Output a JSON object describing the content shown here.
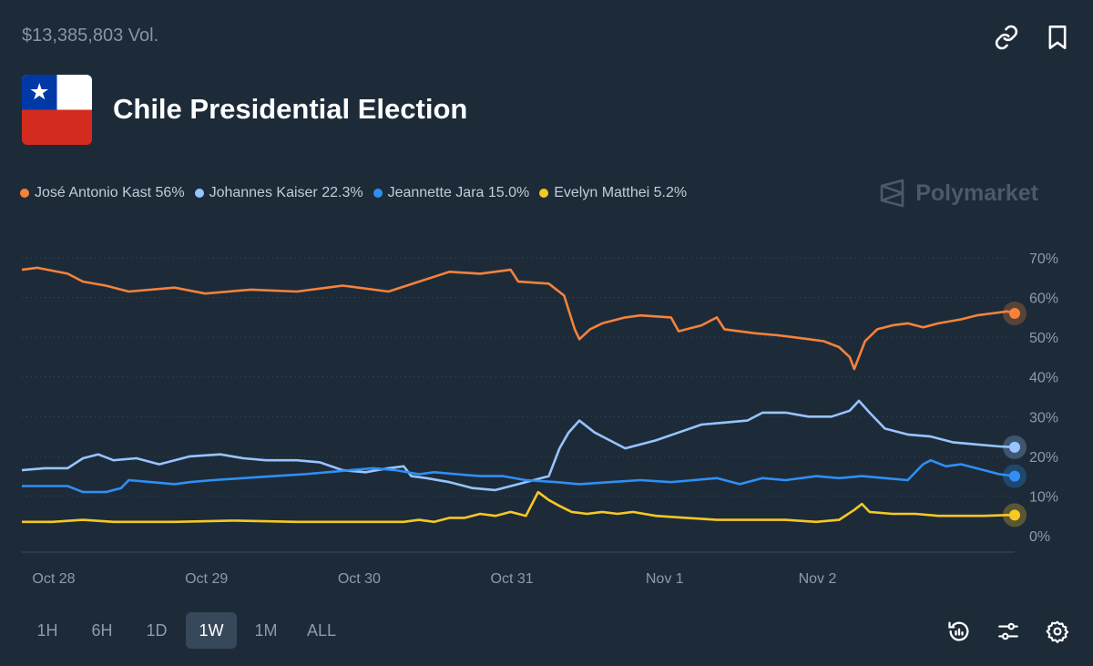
{
  "header": {
    "volume": "$13,385,803 Vol.",
    "title": "Chile Presidential Election",
    "brand": "Polymarket"
  },
  "icons": {
    "link": "link-icon",
    "bookmark": "bookmark-icon",
    "history": "history-icon",
    "filters": "sliders-icon",
    "settings": "gear-icon"
  },
  "legend": [
    {
      "label": "José Antonio Kast 56%",
      "color": "#f6823b"
    },
    {
      "label": "Johannes Kaiser 22.3%",
      "color": "#98c4ff"
    },
    {
      "label": "Jeannette Jara 15.0%",
      "color": "#2f8ff5"
    },
    {
      "label": "Evelyn Matthei 5.2%",
      "color": "#f7c823"
    }
  ],
  "timeframes": [
    {
      "label": "1H",
      "active": false
    },
    {
      "label": "6H",
      "active": false
    },
    {
      "label": "1D",
      "active": false
    },
    {
      "label": "1W",
      "active": true
    },
    {
      "label": "1M",
      "active": false
    },
    {
      "label": "ALL",
      "active": false
    }
  ],
  "chart_data": {
    "type": "line",
    "x_ticks": [
      "Oct 28",
      "Oct 29",
      "Oct 30",
      "Oct 31",
      "Nov 1",
      "Nov 2"
    ],
    "y_ticks": [
      "70%",
      "60%",
      "50%",
      "40%",
      "30%",
      "20%",
      "10%",
      "0%"
    ],
    "ylim": [
      0,
      70
    ],
    "xlim": [
      0,
      6.5
    ],
    "grid": "horizontal-dotted",
    "legend_position": "top-left",
    "series": [
      {
        "name": "José Antonio Kast",
        "color": "#f6823b",
        "last_value": 56,
        "points": [
          [
            0,
            67
          ],
          [
            0.1,
            67.5
          ],
          [
            0.3,
            66
          ],
          [
            0.4,
            64
          ],
          [
            0.55,
            63
          ],
          [
            0.7,
            61.5
          ],
          [
            1.0,
            62.5
          ],
          [
            1.2,
            61
          ],
          [
            1.5,
            62
          ],
          [
            1.8,
            61.5
          ],
          [
            2.0,
            62.5
          ],
          [
            2.1,
            63
          ],
          [
            2.4,
            61.5
          ],
          [
            2.6,
            64
          ],
          [
            2.8,
            66.5
          ],
          [
            3.0,
            66
          ],
          [
            3.2,
            67
          ],
          [
            3.25,
            64
          ],
          [
            3.45,
            63.5
          ],
          [
            3.55,
            60.5
          ],
          [
            3.62,
            52
          ],
          [
            3.65,
            49.5
          ],
          [
            3.72,
            52
          ],
          [
            3.8,
            53.5
          ],
          [
            3.95,
            55
          ],
          [
            4.05,
            55.5
          ],
          [
            4.25,
            55
          ],
          [
            4.3,
            51.5
          ],
          [
            4.45,
            53
          ],
          [
            4.55,
            55
          ],
          [
            4.6,
            52
          ],
          [
            4.8,
            51
          ],
          [
            4.95,
            50.5
          ],
          [
            5.05,
            50
          ],
          [
            5.25,
            49
          ],
          [
            5.35,
            47.5
          ],
          [
            5.42,
            45
          ],
          [
            5.45,
            42
          ],
          [
            5.52,
            49
          ],
          [
            5.6,
            52
          ],
          [
            5.7,
            53
          ],
          [
            5.8,
            53.5
          ],
          [
            5.9,
            52.5
          ],
          [
            6.0,
            53.5
          ],
          [
            6.15,
            54.5
          ],
          [
            6.25,
            55.5
          ],
          [
            6.35,
            56
          ],
          [
            6.45,
            56.5
          ],
          [
            6.5,
            56
          ]
        ]
      },
      {
        "name": "Johannes Kaiser",
        "color": "#98c4ff",
        "last_value": 22.3,
        "points": [
          [
            0,
            16.5
          ],
          [
            0.15,
            17
          ],
          [
            0.3,
            17
          ],
          [
            0.4,
            19.5
          ],
          [
            0.5,
            20.5
          ],
          [
            0.6,
            19
          ],
          [
            0.75,
            19.5
          ],
          [
            0.9,
            18
          ],
          [
            1.0,
            19
          ],
          [
            1.1,
            20
          ],
          [
            1.3,
            20.5
          ],
          [
            1.45,
            19.5
          ],
          [
            1.6,
            19
          ],
          [
            1.8,
            19
          ],
          [
            1.95,
            18.5
          ],
          [
            2.1,
            16.5
          ],
          [
            2.25,
            16
          ],
          [
            2.4,
            17
          ],
          [
            2.5,
            17.5
          ],
          [
            2.55,
            15
          ],
          [
            2.65,
            14.5
          ],
          [
            2.8,
            13.5
          ],
          [
            2.95,
            12
          ],
          [
            3.1,
            11.5
          ],
          [
            3.25,
            13
          ],
          [
            3.45,
            15
          ],
          [
            3.52,
            22
          ],
          [
            3.58,
            26
          ],
          [
            3.65,
            29
          ],
          [
            3.75,
            26
          ],
          [
            3.85,
            24
          ],
          [
            3.95,
            22
          ],
          [
            4.05,
            23
          ],
          [
            4.15,
            24
          ],
          [
            4.3,
            26
          ],
          [
            4.45,
            28
          ],
          [
            4.6,
            28.5
          ],
          [
            4.75,
            29
          ],
          [
            4.85,
            31
          ],
          [
            5.0,
            31
          ],
          [
            5.15,
            30
          ],
          [
            5.3,
            30
          ],
          [
            5.42,
            31.5
          ],
          [
            5.48,
            34
          ],
          [
            5.55,
            31
          ],
          [
            5.65,
            27
          ],
          [
            5.8,
            25.5
          ],
          [
            5.95,
            25
          ],
          [
            6.1,
            23.5
          ],
          [
            6.25,
            23
          ],
          [
            6.4,
            22.5
          ],
          [
            6.5,
            22.3
          ]
        ]
      },
      {
        "name": "Jeannette Jara",
        "color": "#2f8ff5",
        "last_value": 15.0,
        "points": [
          [
            0,
            12.5
          ],
          [
            0.15,
            12.5
          ],
          [
            0.3,
            12.5
          ],
          [
            0.4,
            11
          ],
          [
            0.55,
            11
          ],
          [
            0.65,
            12
          ],
          [
            0.7,
            14
          ],
          [
            0.85,
            13.5
          ],
          [
            1.0,
            13
          ],
          [
            1.1,
            13.5
          ],
          [
            1.25,
            14
          ],
          [
            1.45,
            14.5
          ],
          [
            1.65,
            15
          ],
          [
            1.85,
            15.5
          ],
          [
            2.0,
            16
          ],
          [
            2.15,
            16.5
          ],
          [
            2.3,
            17
          ],
          [
            2.45,
            16.5
          ],
          [
            2.6,
            15.5
          ],
          [
            2.7,
            16
          ],
          [
            2.85,
            15.5
          ],
          [
            3.0,
            15
          ],
          [
            3.15,
            15
          ],
          [
            3.3,
            14
          ],
          [
            3.5,
            13.5
          ],
          [
            3.65,
            13
          ],
          [
            3.85,
            13.5
          ],
          [
            4.05,
            14
          ],
          [
            4.25,
            13.5
          ],
          [
            4.4,
            14
          ],
          [
            4.55,
            14.5
          ],
          [
            4.7,
            13
          ],
          [
            4.85,
            14.5
          ],
          [
            5.0,
            14
          ],
          [
            5.2,
            15
          ],
          [
            5.35,
            14.5
          ],
          [
            5.5,
            15
          ],
          [
            5.65,
            14.5
          ],
          [
            5.8,
            14
          ],
          [
            5.9,
            18
          ],
          [
            5.95,
            19
          ],
          [
            6.05,
            17.5
          ],
          [
            6.15,
            18
          ],
          [
            6.3,
            16.5
          ],
          [
            6.4,
            15.5
          ],
          [
            6.5,
            15
          ]
        ]
      },
      {
        "name": "Evelyn Matthei",
        "color": "#f7c823",
        "last_value": 5.2,
        "points": [
          [
            0,
            3.5
          ],
          [
            0.2,
            3.5
          ],
          [
            0.4,
            4
          ],
          [
            0.6,
            3.5
          ],
          [
            1.0,
            3.5
          ],
          [
            1.4,
            3.8
          ],
          [
            1.8,
            3.5
          ],
          [
            2.2,
            3.5
          ],
          [
            2.5,
            3.5
          ],
          [
            2.6,
            4
          ],
          [
            2.7,
            3.5
          ],
          [
            2.8,
            4.5
          ],
          [
            2.9,
            4.5
          ],
          [
            3.0,
            5.5
          ],
          [
            3.1,
            5
          ],
          [
            3.2,
            6
          ],
          [
            3.3,
            5
          ],
          [
            3.38,
            11
          ],
          [
            3.45,
            9
          ],
          [
            3.52,
            7.5
          ],
          [
            3.6,
            6
          ],
          [
            3.7,
            5.5
          ],
          [
            3.8,
            6
          ],
          [
            3.9,
            5.5
          ],
          [
            4.0,
            6
          ],
          [
            4.15,
            5
          ],
          [
            4.35,
            4.5
          ],
          [
            4.55,
            4
          ],
          [
            4.8,
            4
          ],
          [
            5.0,
            4
          ],
          [
            5.2,
            3.5
          ],
          [
            5.35,
            4
          ],
          [
            5.45,
            6.5
          ],
          [
            5.5,
            8
          ],
          [
            5.55,
            6
          ],
          [
            5.7,
            5.5
          ],
          [
            5.85,
            5.5
          ],
          [
            6.0,
            5
          ],
          [
            6.15,
            5
          ],
          [
            6.3,
            5
          ],
          [
            6.45,
            5.2
          ],
          [
            6.5,
            5.2
          ]
        ]
      }
    ]
  }
}
